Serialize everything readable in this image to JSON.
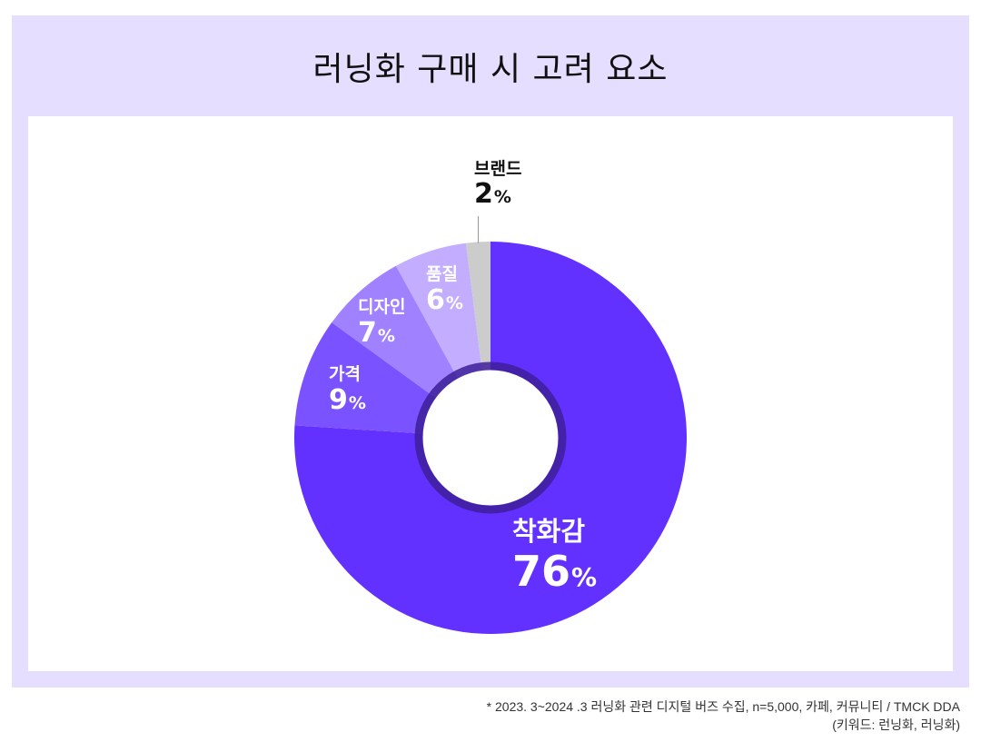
{
  "title": "러닝화 구매 시 고려 요소",
  "colors": {
    "panel_bg": "#E6DEFF",
    "inner_bg": "#FFFFFF",
    "ring": "#3D1F99"
  },
  "chart_data": {
    "type": "pie",
    "variant": "donut",
    "title": "러닝화 구매 시 고려 요소",
    "unit": "%",
    "start_angle": "12 o'clock, clockwise",
    "categories": [
      "착화감",
      "가격",
      "디자인",
      "품질",
      "브랜드"
    ],
    "values": [
      76,
      9,
      7,
      6,
      2
    ],
    "colors": [
      "#6331FF",
      "#7B52FF",
      "#A081FF",
      "#C3ADFF",
      "#CCCCCC"
    ],
    "legend": "none (inline labels)"
  },
  "labels": [
    {
      "name": "착화감",
      "pct": "76",
      "sign": "%"
    },
    {
      "name": "가격",
      "pct": "9",
      "sign": "%"
    },
    {
      "name": "디자인",
      "pct": "7",
      "sign": "%"
    },
    {
      "name": "품질",
      "pct": "6",
      "sign": "%"
    },
    {
      "name": "브랜드",
      "pct": "2",
      "sign": "%"
    }
  ],
  "footnote": {
    "line1": "* 2023. 3~2024 .3 러닝화 관련 디지털 버즈 수집, n=5,000, 카페, 커뮤니티 / TMCK DDA",
    "line2": "(키워드: 런닝화, 러닝화)"
  }
}
